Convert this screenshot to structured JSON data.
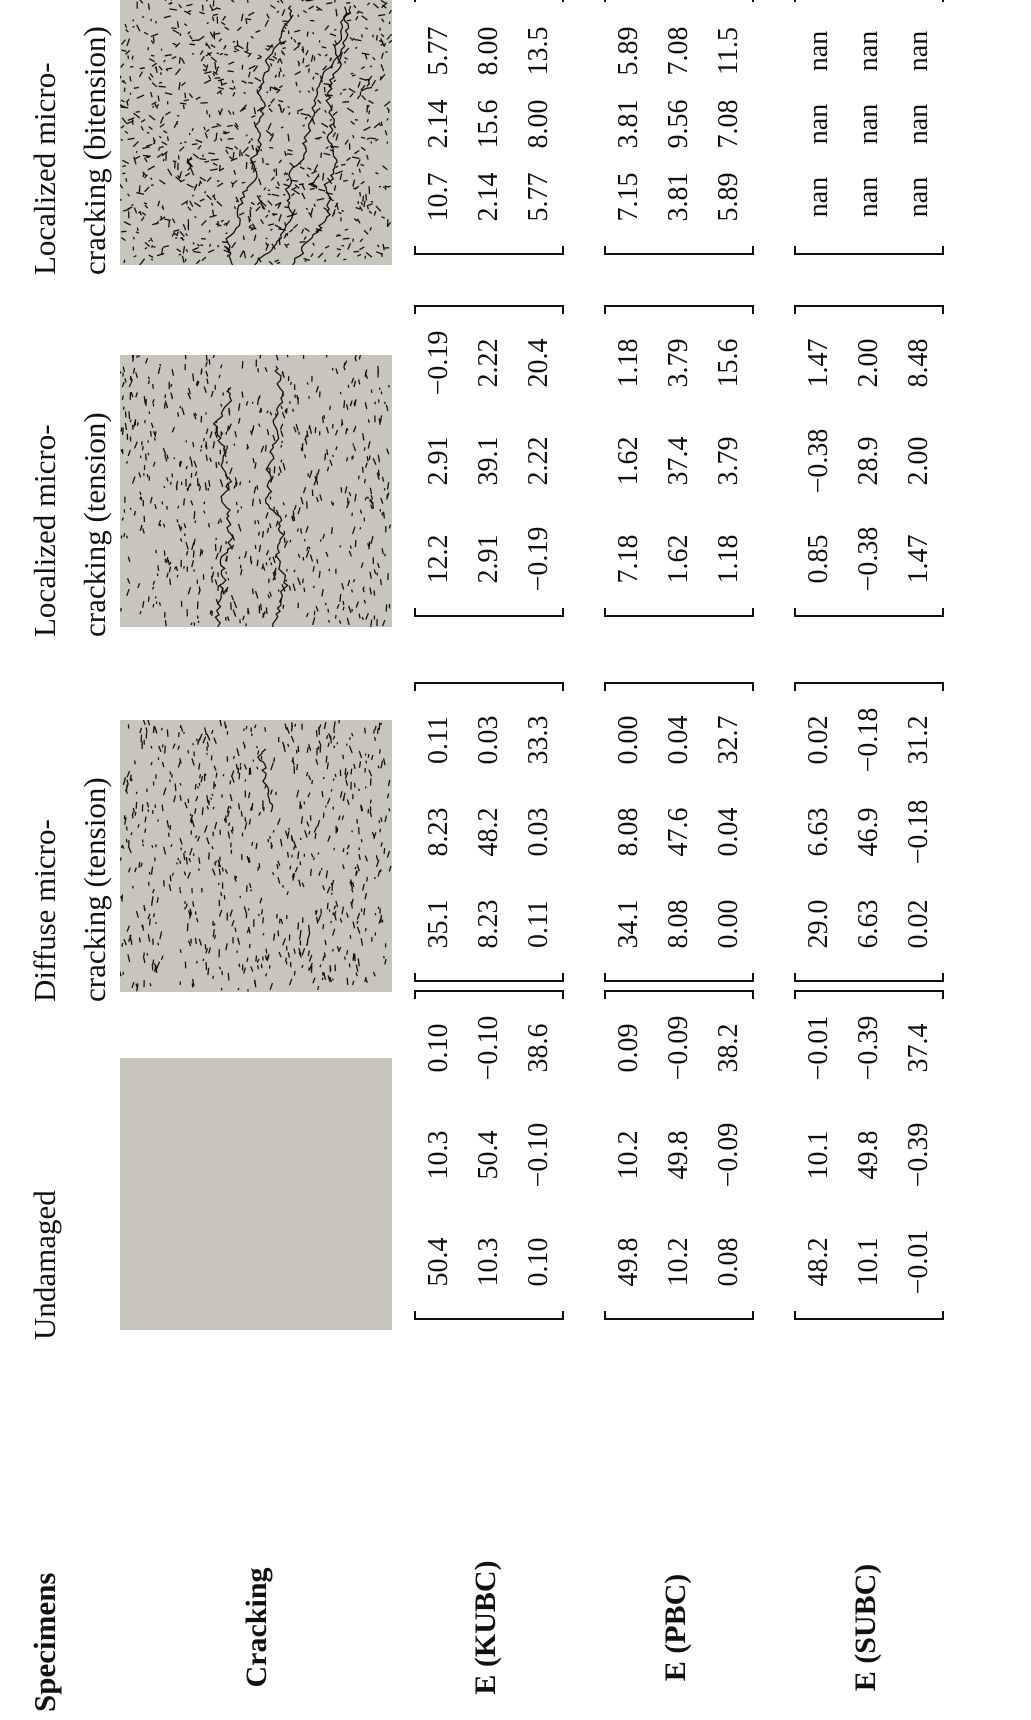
{
  "header": {
    "label": "Specimens",
    "columns": [
      [
        "Undamaged"
      ],
      [
        "Diffuse micro-",
        "cracking (tension)"
      ],
      [
        "Localized micro-",
        "cracking (tension)"
      ],
      [
        "Localized micro-",
        "cracking (bitension)"
      ]
    ]
  },
  "cracking_label": "Cracking",
  "tensor_rows": [
    {
      "label": "E (KUBC)",
      "matrices": [
        [
          [
            "50.4",
            "10.3",
            "0.10"
          ],
          [
            "10.3",
            "50.4",
            "−0.10"
          ],
          [
            "0.10",
            "−0.10",
            "38.6"
          ]
        ],
        [
          [
            "35.1",
            "8.23",
            "0.11"
          ],
          [
            "8.23",
            "48.2",
            "0.03"
          ],
          [
            "0.11",
            "0.03",
            "33.3"
          ]
        ],
        [
          [
            "12.2",
            "2.91",
            "−0.19"
          ],
          [
            "2.91",
            "39.1",
            "2.22"
          ],
          [
            "−0.19",
            "2.22",
            "20.4"
          ]
        ],
        [
          [
            "10.7",
            "2.14",
            "5.77"
          ],
          [
            "2.14",
            "15.6",
            "8.00"
          ],
          [
            "5.77",
            "8.00",
            "13.5"
          ]
        ]
      ]
    },
    {
      "label": "E (PBC)",
      "matrices": [
        [
          [
            "49.8",
            "10.2",
            "0.09"
          ],
          [
            "10.2",
            "49.8",
            "−0.09"
          ],
          [
            "0.08",
            "−0.09",
            "38.2"
          ]
        ],
        [
          [
            "34.1",
            "8.08",
            "0.00"
          ],
          [
            "8.08",
            "47.6",
            "0.04"
          ],
          [
            "0.00",
            "0.04",
            "32.7"
          ]
        ],
        [
          [
            "7.18",
            "1.62",
            "1.18"
          ],
          [
            "1.62",
            "37.4",
            "3.79"
          ],
          [
            "1.18",
            "3.79",
            "15.6"
          ]
        ],
        [
          [
            "7.15",
            "3.81",
            "5.89"
          ],
          [
            "3.81",
            "9.56",
            "7.08"
          ],
          [
            "5.89",
            "7.08",
            "11.5"
          ]
        ]
      ]
    },
    {
      "label": "E (SUBC)",
      "matrices": [
        [
          [
            "48.2",
            "10.1",
            "−0.01"
          ],
          [
            "10.1",
            "49.8",
            "−0.39"
          ],
          [
            "−0.01",
            "−0.39",
            "37.4"
          ]
        ],
        [
          [
            "29.0",
            "6.63",
            "0.02"
          ],
          [
            "6.63",
            "46.9",
            "−0.18"
          ],
          [
            "0.02",
            "−0.18",
            "31.2"
          ]
        ],
        [
          [
            "0.85",
            "−0.38",
            "1.47"
          ],
          [
            "−0.38",
            "28.9",
            "2.00"
          ],
          [
            "1.47",
            "2.00",
            "8.48"
          ]
        ],
        [
          [
            "nan",
            "nan",
            "nan"
          ],
          [
            "nan",
            "nan",
            "nan"
          ],
          [
            "nan",
            "nan",
            "nan"
          ]
        ]
      ]
    }
  ]
}
